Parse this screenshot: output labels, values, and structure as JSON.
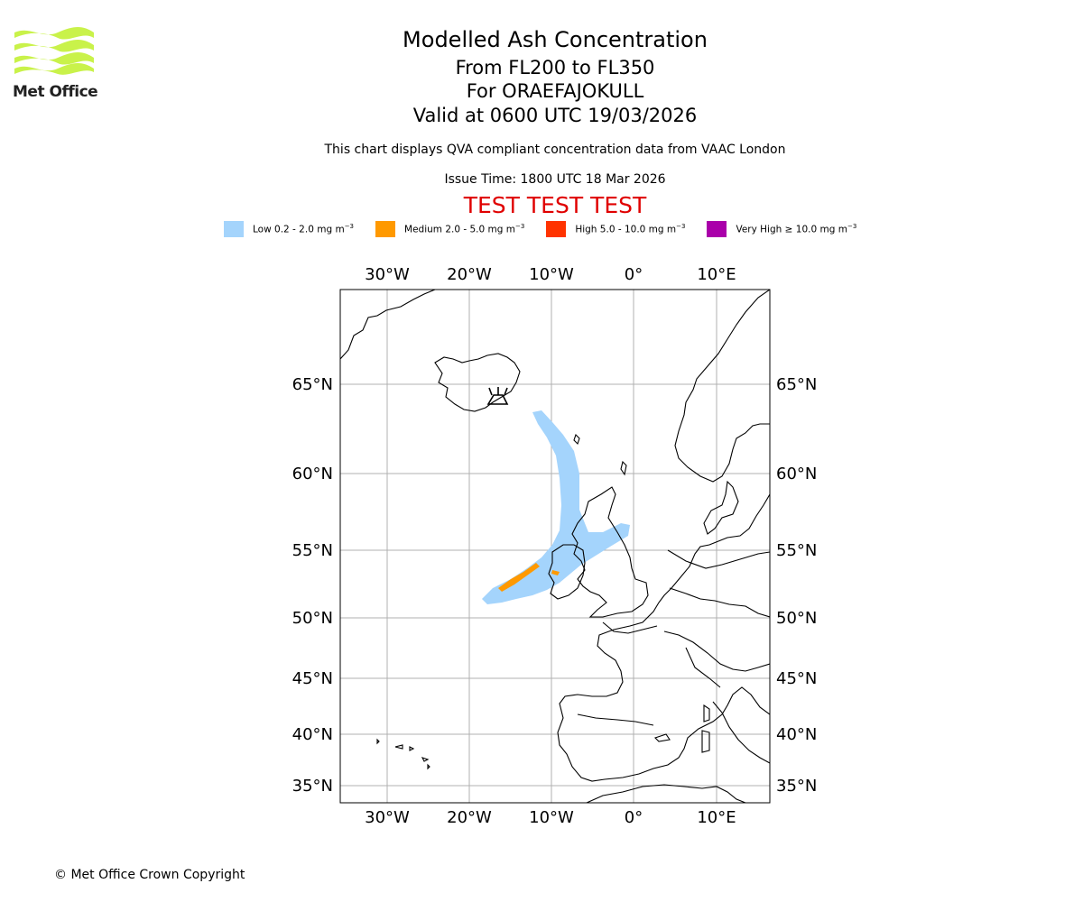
{
  "logo": {
    "text": "Met Office"
  },
  "title": {
    "line1": "Modelled Ash Concentration",
    "line2": "From FL200 to FL350",
    "line3": "For ORAEFAJOKULL",
    "line4": "Valid at 0600 UTC 19/03/2026"
  },
  "description": "This chart displays QVA compliant concentration data from VAAC London",
  "issue_time": "Issue Time: 1800 UTC 18 Mar 2026",
  "test_banner": "TEST TEST TEST",
  "legend": [
    {
      "label": "Low 0.2 - 2.0 mg m",
      "unit_exp": "−3",
      "color": "#a4d4fc"
    },
    {
      "label": "Medium 2.0 - 5.0 mg m",
      "unit_exp": "−3",
      "color": "#ff9900"
    },
    {
      "label": "High 5.0 - 10.0 mg m",
      "unit_exp": "−3",
      "color": "#ff3300"
    },
    {
      "label": "Very High  ≥  10.0 mg m",
      "unit_exp": "−3",
      "color": "#aa00aa"
    }
  ],
  "map": {
    "lon_ticks": [
      "30°W",
      "20°W",
      "10°W",
      "0°",
      "10°E"
    ],
    "lat_ticks": [
      "65°N",
      "60°N",
      "55°N",
      "50°N",
      "45°N",
      "40°N",
      "35°N"
    ],
    "volcano_icon": "volcano-icon"
  },
  "copyright": "© Met Office Crown Copyright"
}
